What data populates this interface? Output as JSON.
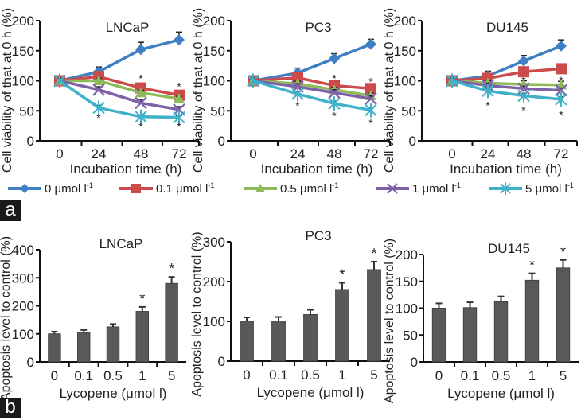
{
  "panel_labels": {
    "a": "a",
    "b": "b"
  },
  "legend": [
    {
      "label": "0 μmol l",
      "sup": "-1",
      "color": "#3f7fc4",
      "marker": "diamond"
    },
    {
      "label": "0.1 μmol l",
      "sup": "-1",
      "color": "#cc4a4a",
      "marker": "square"
    },
    {
      "label": "0.5 μmol l",
      "sup": "-1",
      "color": "#8fba5a",
      "marker": "triangle"
    },
    {
      "label": "1 μmol l",
      "sup": "-1",
      "color": "#7d62a8",
      "marker": "x"
    },
    {
      "label": "5 μmol l",
      "sup": "-1",
      "color": "#3fb1c8",
      "marker": "star"
    }
  ],
  "chart_data": [
    {
      "type": "line",
      "title": "LNCaP",
      "xlabel": "Incubation time (h)",
      "ylabel": "Cell viability of that at 0 h (%)",
      "x": [
        0,
        24,
        48,
        72
      ],
      "ylim": [
        0,
        200
      ],
      "yticks": [
        0,
        50,
        100,
        150,
        200
      ],
      "series": [
        {
          "name": "0 μmol l-1",
          "values": [
            100,
            115,
            152,
            168
          ],
          "errors": [
            5,
            8,
            12,
            13
          ]
        },
        {
          "name": "0.1 μmol l-1",
          "values": [
            100,
            107,
            88,
            76
          ],
          "errors": [
            5,
            5,
            5,
            5
          ]
        },
        {
          "name": "0.5 μmol l-1",
          "values": [
            100,
            100,
            80,
            70
          ],
          "errors": [
            4,
            4,
            4,
            4
          ]
        },
        {
          "name": "1 μmol l-1",
          "values": [
            100,
            85,
            63,
            52
          ],
          "errors": [
            4,
            5,
            6,
            5
          ]
        },
        {
          "name": "5 μmol l-1",
          "values": [
            100,
            55,
            40,
            39
          ],
          "errors": [
            4,
            4,
            3,
            3
          ]
        }
      ],
      "annotations": [
        {
          "x": 48,
          "y": 105,
          "text": "*"
        },
        {
          "x": 72,
          "y": 92,
          "text": "*"
        },
        {
          "x": 24,
          "y": 40,
          "text": "*"
        },
        {
          "x": 48,
          "y": 25,
          "text": "*"
        },
        {
          "x": 72,
          "y": 25,
          "text": "*"
        }
      ]
    },
    {
      "type": "line",
      "title": "PC3",
      "xlabel": "Incubation time (h)",
      "ylabel": "Cell viability of that at 0 h (%)",
      "x": [
        0,
        24,
        48,
        72
      ],
      "ylim": [
        0,
        200
      ],
      "yticks": [
        0,
        50,
        100,
        150,
        200
      ],
      "series": [
        {
          "name": "0 μmol l-1",
          "values": [
            100,
            113,
            137,
            161
          ],
          "errors": [
            5,
            8,
            8,
            8
          ]
        },
        {
          "name": "0.1 μmol l-1",
          "values": [
            100,
            105,
            92,
            87
          ],
          "errors": [
            5,
            4,
            4,
            4
          ]
        },
        {
          "name": "0.5 μmol l-1",
          "values": [
            100,
            95,
            85,
            75
          ],
          "errors": [
            4,
            4,
            4,
            4
          ]
        },
        {
          "name": "1 μmol l-1",
          "values": [
            100,
            90,
            80,
            70
          ],
          "errors": [
            4,
            5,
            5,
            5
          ]
        },
        {
          "name": "5 μmol l-1",
          "values": [
            100,
            78,
            62,
            51
          ],
          "errors": [
            4,
            4,
            4,
            4
          ]
        }
      ],
      "annotations": [
        {
          "x": 48,
          "y": 105,
          "text": "*"
        },
        {
          "x": 72,
          "y": 100,
          "text": "*"
        },
        {
          "x": 24,
          "y": 60,
          "text": "*"
        },
        {
          "x": 48,
          "y": 43,
          "text": "*"
        },
        {
          "x": 72,
          "y": 31,
          "text": "*"
        }
      ]
    },
    {
      "type": "line",
      "title": "DU145",
      "xlabel": "Incubation time (h)",
      "ylabel": "Cell viability of that at 0 h (%)",
      "x": [
        0,
        24,
        48,
        72
      ],
      "ylim": [
        0,
        200
      ],
      "yticks": [
        0,
        50,
        100,
        150,
        200
      ],
      "series": [
        {
          "name": "0 μmol l-1",
          "values": [
            100,
            108,
            133,
            158
          ],
          "errors": [
            5,
            8,
            9,
            10
          ]
        },
        {
          "name": "0.1 μmol l-1",
          "values": [
            100,
            104,
            115,
            120
          ],
          "errors": [
            5,
            4,
            6,
            7
          ]
        },
        {
          "name": "0.5 μmol l-1",
          "values": [
            100,
            96,
            94,
            93
          ],
          "errors": [
            4,
            4,
            6,
            6
          ]
        },
        {
          "name": "1 μmol l-1",
          "values": [
            100,
            92,
            87,
            84
          ],
          "errors": [
            4,
            4,
            4,
            4
          ]
        },
        {
          "name": "5 μmol l-1",
          "values": [
            100,
            83,
            75,
            69
          ],
          "errors": [
            4,
            4,
            4,
            4
          ]
        }
      ],
      "annotations": [
        {
          "x": 48,
          "y": 102,
          "text": "*"
        },
        {
          "x": 72,
          "y": 102,
          "text": "*"
        },
        {
          "x": 24,
          "y": 60,
          "text": "*"
        },
        {
          "x": 48,
          "y": 52,
          "text": "*"
        },
        {
          "x": 72,
          "y": 45,
          "text": "*"
        }
      ]
    },
    {
      "type": "bar",
      "title": "LNCaP",
      "xlabel": "Lycopene (μmol l-1)",
      "ylabel": "Apoptosis level to control (%)",
      "categories": [
        "0",
        "0.1",
        "0.5",
        "1",
        "5"
      ],
      "values": [
        100,
        105,
        125,
        180,
        280
      ],
      "errors": [
        8,
        9,
        10,
        16,
        23
      ],
      "ylim": [
        0,
        400
      ],
      "yticks": [
        0,
        100,
        200,
        300,
        400
      ],
      "significant": [
        false,
        false,
        false,
        true,
        true
      ],
      "bar_color": "#595959"
    },
    {
      "type": "bar",
      "title": "PC3",
      "xlabel": "Lycopene (μmol l-1)",
      "ylabel": "Apoptosis level to control (%)",
      "categories": [
        "0",
        "0.1",
        "0.5",
        "1",
        "5"
      ],
      "values": [
        100,
        101,
        117,
        180,
        230
      ],
      "errors": [
        10,
        10,
        12,
        17,
        20
      ],
      "ylim": [
        0,
        300
      ],
      "yticks": [
        0,
        100,
        200,
        300
      ],
      "significant": [
        false,
        false,
        false,
        true,
        true
      ],
      "bar_color": "#595959"
    },
    {
      "type": "bar",
      "title": "DU145",
      "xlabel": "Lycopene (μmol l-1)",
      "ylabel": "Apoptosis level to control (%)",
      "categories": [
        "0",
        "0.1",
        "0.5",
        "1",
        "5"
      ],
      "values": [
        100,
        101,
        112,
        152,
        175
      ],
      "errors": [
        9,
        10,
        10,
        13,
        15
      ],
      "ylim": [
        0,
        200
      ],
      "yticks": [
        0,
        50,
        100,
        150,
        200
      ],
      "significant": [
        false,
        false,
        false,
        true,
        true
      ],
      "bar_color": "#595959"
    }
  ]
}
